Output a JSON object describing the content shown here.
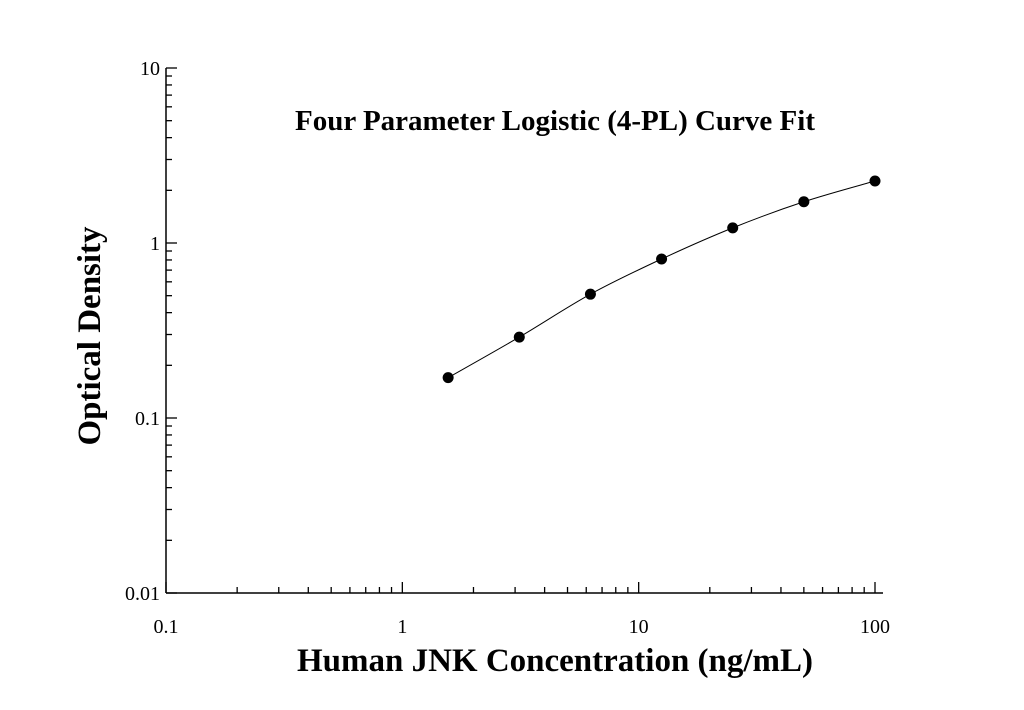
{
  "chart_data": {
    "type": "scatter",
    "title": "Four Parameter Logistic (4-PL) Curve Fit",
    "xlabel": "Human JNK Concentration (ng/mL)",
    "ylabel": "Optical Density",
    "x_scale": "log",
    "y_scale": "log",
    "xlim": [
      0.1,
      100
    ],
    "ylim": [
      0.01,
      10
    ],
    "x_ticks": [
      "0.1",
      "1",
      "10",
      "100"
    ],
    "y_ticks": [
      "0.01",
      "0.1",
      "1",
      "10"
    ],
    "grid": false,
    "legend": "none",
    "series": [
      {
        "x": [
          1.5625,
          3.125,
          6.25,
          12.5,
          25,
          50,
          100
        ],
        "y": [
          0.17,
          0.29,
          0.51,
          0.81,
          1.22,
          1.72,
          2.26
        ]
      }
    ],
    "fit_curve": {
      "model": "4-PL",
      "x_range": [
        1.5625,
        100
      ]
    }
  }
}
